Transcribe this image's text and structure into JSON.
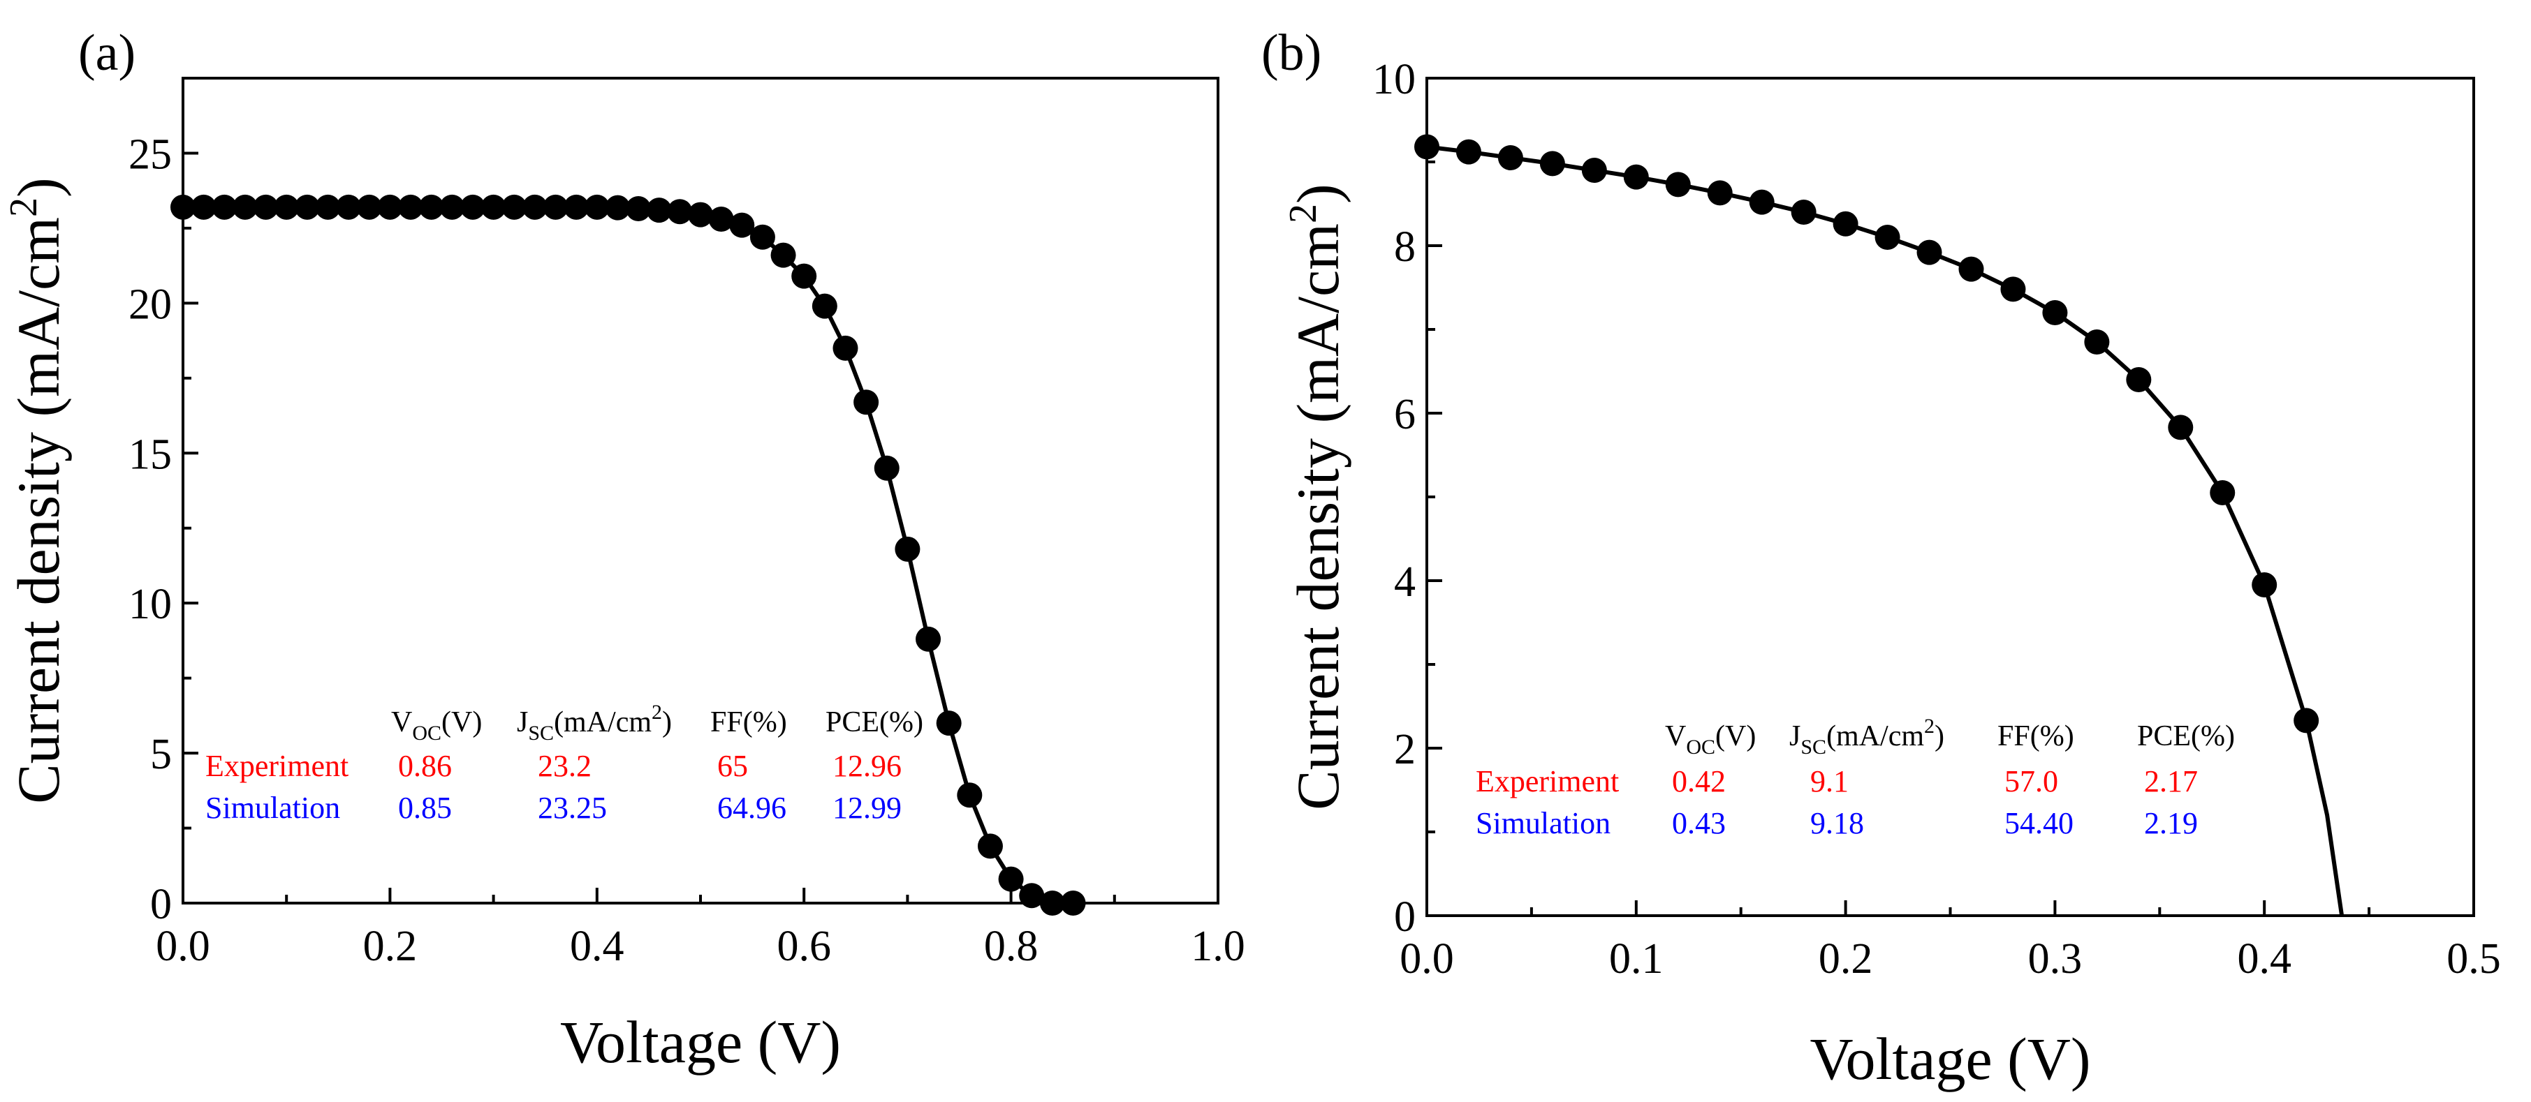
{
  "colors": {
    "axis": "#000000",
    "experiment": "#ff0000",
    "simulation": "#0000ff",
    "marker": "#000000"
  },
  "chart_data": [
    {
      "panel_label": "(a)",
      "type": "line",
      "xlabel": "Voltage (V)",
      "ylabel": "Current density (mA/cm",
      "ylabel_sup": "2",
      "ylabel_tail": ")",
      "xlim": [
        0.0,
        1.0
      ],
      "ylim": [
        0,
        27.5
      ],
      "xticks": [
        "0.0",
        "0.2",
        "0.4",
        "0.6",
        "0.8",
        "1.0"
      ],
      "yticks": [
        "0",
        "5",
        "10",
        "15",
        "20",
        "25"
      ],
      "series": [
        {
          "name": "Experiment",
          "marker": "circle",
          "x": [
            0.0,
            0.02,
            0.04,
            0.06,
            0.08,
            0.1,
            0.12,
            0.14,
            0.16,
            0.18,
            0.2,
            0.22,
            0.24,
            0.26,
            0.28,
            0.3,
            0.32,
            0.34,
            0.36,
            0.38,
            0.4,
            0.42,
            0.44,
            0.46,
            0.48,
            0.5,
            0.52,
            0.54,
            0.56,
            0.58,
            0.6,
            0.62,
            0.64,
            0.66,
            0.68,
            0.7,
            0.72,
            0.74,
            0.76,
            0.78,
            0.8,
            0.82,
            0.84,
            0.86
          ],
          "y": [
            23.2,
            23.2,
            23.2,
            23.2,
            23.2,
            23.2,
            23.2,
            23.2,
            23.2,
            23.2,
            23.2,
            23.2,
            23.2,
            23.2,
            23.2,
            23.2,
            23.2,
            23.2,
            23.2,
            23.2,
            23.2,
            23.18,
            23.15,
            23.1,
            23.05,
            22.95,
            22.8,
            22.6,
            22.2,
            21.6,
            20.9,
            19.9,
            18.5,
            16.7,
            14.5,
            11.8,
            8.8,
            6.0,
            3.6,
            1.9,
            0.8,
            0.25,
            0.0,
            0.0
          ]
        }
      ],
      "table": {
        "headers": [
          {
            "main": "V",
            "sub": "OC",
            "tail": "(V)"
          },
          {
            "main": "J",
            "sub": "SC",
            "tail": "(mA/cm",
            "sup": "2",
            "tail2": ")"
          },
          {
            "main": "FF(%)"
          },
          {
            "main": "PCE(%)"
          }
        ],
        "rows": [
          {
            "label": "Experiment",
            "color": "#ff0000",
            "values": [
              "0.86",
              "23.2",
              "65",
              "12.96"
            ]
          },
          {
            "label": "Simulation",
            "color": "#0000ff",
            "values": [
              "0.85",
              "23.25",
              "64.96",
              "12.99"
            ]
          }
        ]
      }
    },
    {
      "panel_label": "(b)",
      "type": "line",
      "xlabel": "Voltage (V)",
      "ylabel": "Current density (mA/cm",
      "ylabel_sup": "2",
      "ylabel_tail": ")",
      "xlim": [
        0.0,
        0.5
      ],
      "ylim": [
        0,
        10
      ],
      "xticks": [
        "0.0",
        "0.1",
        "0.2",
        "0.3",
        "0.4",
        "0.5"
      ],
      "yticks": [
        "0",
        "2",
        "4",
        "6",
        "8",
        "10"
      ],
      "series": [
        {
          "name": "Experiment",
          "marker": "circle",
          "x": [
            0.0,
            0.02,
            0.04,
            0.06,
            0.08,
            0.1,
            0.12,
            0.14,
            0.16,
            0.18,
            0.2,
            0.22,
            0.24,
            0.26,
            0.28,
            0.3,
            0.32,
            0.34,
            0.36,
            0.38,
            0.4,
            0.42
          ],
          "y": [
            9.18,
            9.12,
            9.05,
            8.98,
            8.9,
            8.82,
            8.73,
            8.63,
            8.52,
            8.4,
            8.26,
            8.1,
            7.92,
            7.72,
            7.48,
            7.2,
            6.85,
            6.4,
            5.83,
            5.05,
            3.95,
            2.33
          ],
          "curve_x": [
            0.0,
            0.02,
            0.04,
            0.06,
            0.08,
            0.1,
            0.12,
            0.14,
            0.16,
            0.18,
            0.2,
            0.22,
            0.24,
            0.26,
            0.28,
            0.3,
            0.32,
            0.34,
            0.36,
            0.38,
            0.4,
            0.42,
            0.43,
            0.437
          ],
          "curve_y": [
            9.18,
            9.12,
            9.05,
            8.98,
            8.9,
            8.82,
            8.73,
            8.63,
            8.52,
            8.4,
            8.26,
            8.1,
            7.92,
            7.72,
            7.48,
            7.2,
            6.85,
            6.4,
            5.83,
            5.05,
            3.95,
            2.33,
            1.2,
            0.0
          ]
        }
      ],
      "table": {
        "headers": [
          {
            "main": "V",
            "sub": "OC",
            "tail": "(V)"
          },
          {
            "main": "J",
            "sub": "SC",
            "tail": "(mA/cm",
            "sup": "2",
            "tail2": ")"
          },
          {
            "main": "FF(%)"
          },
          {
            "main": "PCE(%)"
          }
        ],
        "rows": [
          {
            "label": "Experiment",
            "color": "#ff0000",
            "values": [
              "0.42",
              "9.1",
              "57.0",
              "2.17"
            ]
          },
          {
            "label": "Simulation",
            "color": "#0000ff",
            "values": [
              "0.43",
              "9.18",
              "54.40",
              "2.19"
            ]
          }
        ]
      }
    }
  ]
}
